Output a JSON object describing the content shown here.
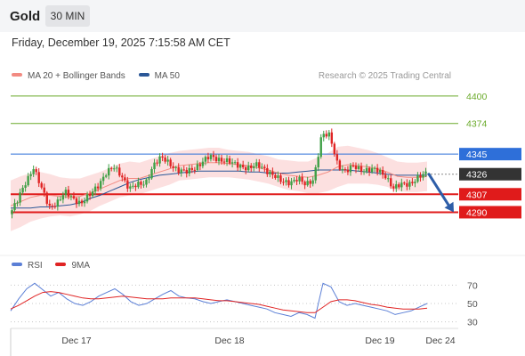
{
  "header": {
    "asset": "Gold",
    "timeframe": "30 MIN",
    "timestamp": "Friday, December 19, 2025 7:15:58 AM CET"
  },
  "legend": {
    "items": [
      {
        "label": "MA 20 + Bollinger Bands",
        "color": "#f28b82"
      },
      {
        "label": "MA 50",
        "color": "#2b5797"
      }
    ]
  },
  "credit": "Research © 2025 Trading Central",
  "rsi_legend": {
    "items": [
      {
        "label": "RSI",
        "color": "#5b7fd6"
      },
      {
        "label": "9MA",
        "color": "#e02424"
      }
    ]
  },
  "chart_data": [
    {
      "type": "candlestick",
      "ylim": [
        4255,
        4410
      ],
      "x_ticks": [
        "Dec 17",
        "Dec 18",
        "Dec 19",
        "Dec 24"
      ],
      "levels": [
        {
          "value": 4400,
          "label": "4400",
          "kind": "target",
          "color": "#6aaa2a"
        },
        {
          "value": 4374,
          "label": "4374",
          "kind": "target",
          "color": "#6aaa2a"
        },
        {
          "value": 4345,
          "label": "4345",
          "kind": "pivot",
          "color": "#2e6fd9"
        },
        {
          "value": 4326,
          "label": "4326",
          "kind": "last-price",
          "color": "#333333"
        },
        {
          "value": 4307,
          "label": "4307",
          "kind": "support",
          "color": "#e01b1b"
        },
        {
          "value": 4290,
          "label": "4290",
          "kind": "support",
          "color": "#e01b1b"
        }
      ],
      "price_path": [
        4288,
        4300,
        4318,
        4333,
        4312,
        4295,
        4300,
        4308,
        4303,
        4299,
        4305,
        4315,
        4327,
        4332,
        4325,
        4313,
        4315,
        4318,
        4335,
        4341,
        4337,
        4330,
        4327,
        4332,
        4337,
        4342,
        4341,
        4339,
        4335,
        4334,
        4332,
        4334,
        4331,
        4325,
        4318,
        4319,
        4322,
        4315,
        4322,
        4363,
        4362,
        4336,
        4328,
        4333,
        4331,
        4330,
        4329,
        4325,
        4312,
        4316,
        4318,
        4322,
        4326
      ],
      "ma20": [
        4296,
        4300,
        4304,
        4306,
        4306,
        4305,
        4304,
        4305,
        4308,
        4312,
        4316,
        4320,
        4322,
        4322,
        4325,
        4328,
        4331,
        4334,
        4335,
        4336,
        4337,
        4337,
        4336,
        4335,
        4334,
        4332,
        4330,
        4327,
        4325,
        4324,
        4323,
        4325,
        4328,
        4333,
        4335,
        4334,
        4333,
        4331,
        4328,
        4324,
        4323,
        4323,
        4324
      ],
      "ma50": [
        4294,
        4294,
        4294,
        4295,
        4295,
        4296,
        4297,
        4299,
        4303,
        4306,
        4310,
        4314,
        4318,
        4321,
        4323,
        4325,
        4326,
        4327,
        4328,
        4329,
        4329,
        4329,
        4329,
        4329,
        4328,
        4328,
        4327,
        4327,
        4327,
        4328,
        4329,
        4330,
        4330,
        4330,
        4330,
        4329,
        4328,
        4327,
        4326,
        4325,
        4325,
        4325,
        4325
      ],
      "bb_width": [
        24,
        24,
        23,
        22,
        20,
        18,
        18,
        17,
        17,
        16,
        16,
        16,
        16,
        15,
        15,
        15,
        15,
        14,
        14,
        14,
        14,
        14,
        13,
        13,
        13,
        13,
        13,
        13,
        14,
        14,
        15,
        17,
        18,
        19,
        18,
        17,
        16,
        15,
        14,
        14,
        14,
        14,
        14
      ],
      "forecast": {
        "from": 4326,
        "to": 4290
      }
    },
    {
      "type": "line",
      "name": "RSI",
      "ylim": [
        20,
        80
      ],
      "y_ticks": [
        70,
        50,
        30
      ],
      "rsi": [
        42,
        55,
        66,
        72,
        65,
        58,
        62,
        55,
        50,
        48,
        52,
        58,
        62,
        66,
        60,
        52,
        48,
        50,
        55,
        60,
        64,
        58,
        56,
        55,
        52,
        50,
        52,
        54,
        52,
        50,
        48,
        46,
        44,
        40,
        38,
        36,
        40,
        38,
        34,
        72,
        68,
        52,
        48,
        50,
        48,
        46,
        44,
        42,
        38,
        40,
        42,
        46,
        50
      ],
      "ma9": [
        44,
        48,
        53,
        58,
        62,
        63,
        62,
        60,
        58,
        56,
        55,
        55,
        56,
        57,
        58,
        57,
        56,
        55,
        55,
        55,
        56,
        56,
        56,
        56,
        55,
        54,
        53,
        53,
        52,
        51,
        50,
        49,
        47,
        45,
        43,
        42,
        41,
        40,
        40,
        46,
        52,
        54,
        54,
        53,
        51,
        49,
        48,
        46,
        45,
        44,
        44,
        44,
        45
      ]
    }
  ]
}
